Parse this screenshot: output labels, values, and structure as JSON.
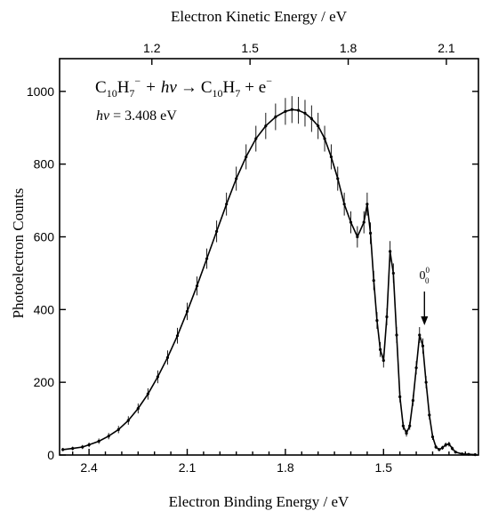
{
  "chart_data": {
    "type": "line",
    "title": "",
    "xlabel": "Electron Binding Energy / eV",
    "x2label": "Electron Kinetic Energy / eV",
    "ylabel": "Photoelectron Counts",
    "xlim": [
      2.49,
      1.21
    ],
    "ylim": [
      0,
      1090
    ],
    "x_reversed": true,
    "x_ticks": [
      "2.4",
      "2.1",
      "1.8",
      "1.5"
    ],
    "x2_ticks": [
      "1.2",
      "1.5",
      "1.8",
      "2.1"
    ],
    "y_ticks": [
      "0",
      "200",
      "400",
      "600",
      "800",
      "1000"
    ],
    "grid": false,
    "annotations": {
      "reaction": {
        "anion": "C",
        "anion_sub": "10",
        "anion_h": "H",
        "anion_h_sub": "7",
        "anion_charge": "−",
        "plus1": "+",
        "photon": "hν",
        "arrow": "→",
        "product": "C",
        "product_sub": "10",
        "product_h": "H",
        "product_h_sub": "7",
        "plus2": "+ e",
        "electron_charge": "−"
      },
      "photon_energy": {
        "symbol": "hν",
        "equals": "= 3.408 eV"
      },
      "origin_label": {
        "text": "0",
        "sub": "0",
        "sup": "0",
        "x": 1.375,
        "y": 430
      }
    },
    "series": [
      {
        "x": [
          2.48,
          2.45,
          2.42,
          2.4,
          2.37,
          2.34,
          2.31,
          2.28,
          2.25,
          2.22,
          2.19,
          2.16,
          2.13,
          2.1,
          2.07,
          2.04,
          2.01,
          1.98,
          1.95,
          1.92,
          1.89,
          1.86,
          1.83,
          1.8,
          1.78,
          1.76,
          1.74,
          1.72,
          1.7,
          1.68,
          1.66,
          1.64,
          1.62,
          1.6,
          1.58,
          1.56,
          1.55,
          1.54,
          1.53,
          1.52,
          1.51,
          1.5,
          1.49,
          1.48,
          1.47,
          1.46,
          1.45,
          1.44,
          1.43,
          1.42,
          1.41,
          1.4,
          1.39,
          1.38,
          1.37,
          1.36,
          1.35,
          1.34,
          1.33,
          1.32,
          1.31,
          1.3,
          1.29,
          1.28,
          1.26,
          1.24,
          1.22
        ],
        "y": [
          15,
          18,
          22,
          28,
          38,
          52,
          70,
          95,
          128,
          168,
          215,
          268,
          328,
          395,
          465,
          540,
          615,
          690,
          760,
          820,
          870,
          905,
          930,
          945,
          950,
          948,
          940,
          925,
          905,
          870,
          820,
          760,
          690,
          640,
          600,
          640,
          690,
          610,
          480,
          370,
          290,
          260,
          380,
          560,
          500,
          330,
          160,
          80,
          60,
          80,
          150,
          240,
          330,
          300,
          200,
          110,
          50,
          22,
          15,
          20,
          28,
          30,
          18,
          8,
          3,
          2,
          1
        ]
      }
    ]
  }
}
